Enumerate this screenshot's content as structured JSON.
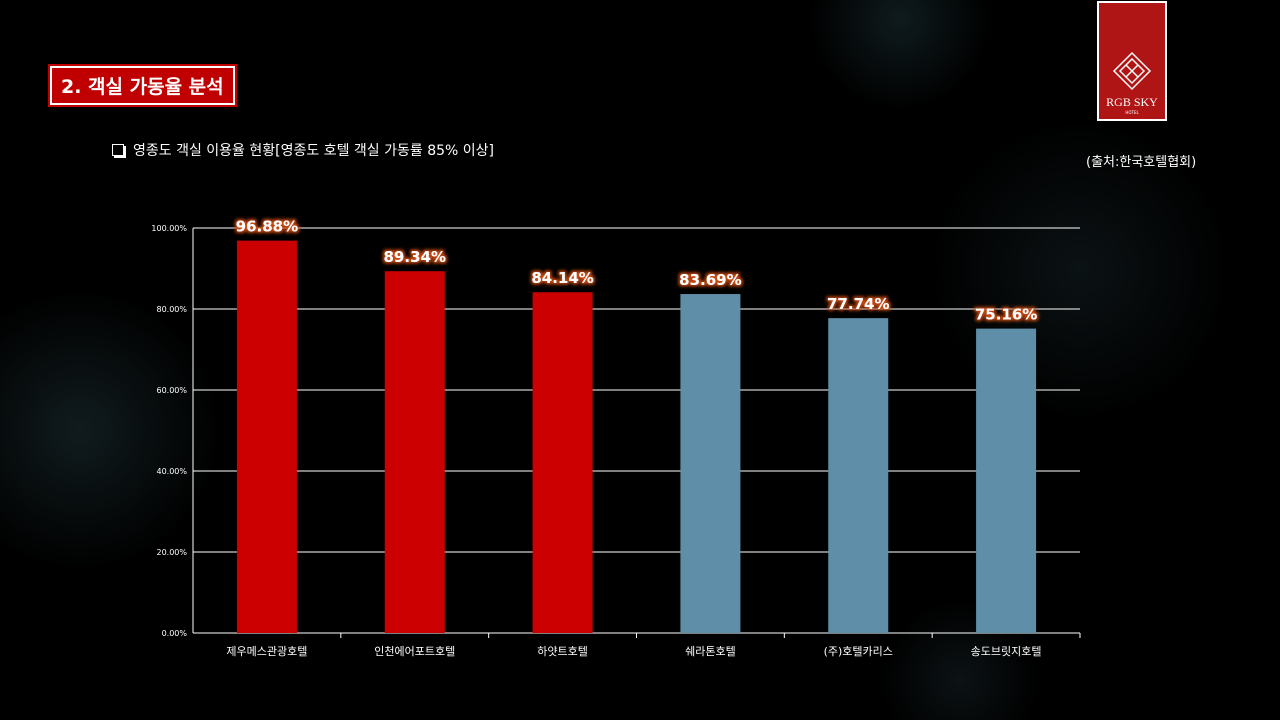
{
  "header": {
    "title": "2. 객실 가동율 분석",
    "subtitle": "영종도 객실 이용율 현황[영종도 호텔 객실 가동률 85% 이상]",
    "source": "(출처:한국호텔협회)",
    "logo": "RGB SKY",
    "logo_sub": "HOTEL"
  },
  "chart_data": {
    "type": "bar",
    "categories": [
      "제우메스관광호텔",
      "인천에어포트호텔",
      "하얏트호텔",
      "쉐라톤호텔",
      "(주)호텔카리스",
      "송도브릿지호텔"
    ],
    "values": [
      96.88,
      89.34,
      84.14,
      83.69,
      77.74,
      75.16
    ],
    "value_labels": [
      "96.88%",
      "89.34%",
      "84.14%",
      "83.69%",
      "77.74%",
      "75.16%"
    ],
    "colors": [
      "#cc0000",
      "#cc0000",
      "#cc0000",
      "#5f8fa8",
      "#5f8fa8",
      "#5f8fa8"
    ],
    "ylim": [
      0,
      100
    ],
    "yticks": [
      {
        "value": 0,
        "label": "0.00%"
      },
      {
        "value": 20,
        "label": "20.00%"
      },
      {
        "value": 40,
        "label": "40.00%"
      },
      {
        "value": 60,
        "label": "60.00%"
      },
      {
        "value": 80,
        "label": "80.00%"
      },
      {
        "value": 100,
        "label": "100.00%"
      }
    ],
    "grid": true
  }
}
